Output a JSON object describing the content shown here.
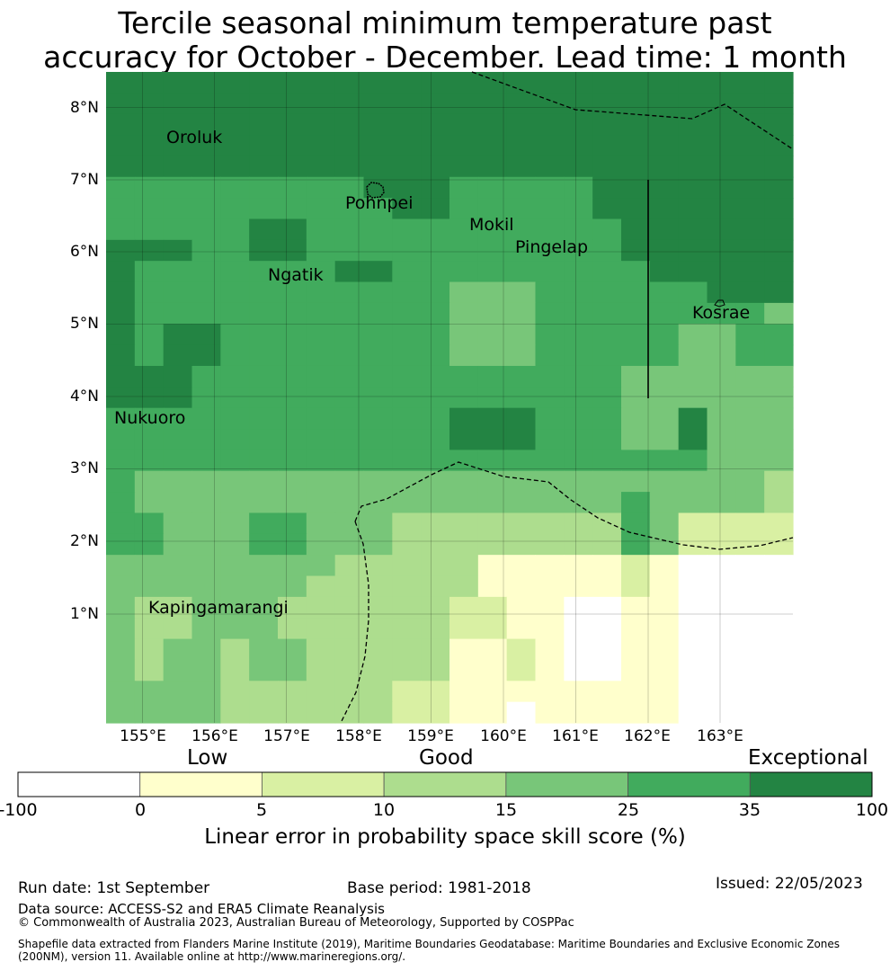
{
  "title": {
    "line1": "Tercile seasonal minimum temperature past",
    "line2": "accuracy for October - December. Lead time: 1 month"
  },
  "map": {
    "lat_labels": [
      "8°N",
      "7°N",
      "6°N",
      "5°N",
      "4°N",
      "3°N",
      "2°N",
      "1°N"
    ],
    "lon_labels": [
      "155°E",
      "156°E",
      "157°E",
      "158°E",
      "159°E",
      "160°E",
      "161°E",
      "162°E",
      "163°E"
    ],
    "places": [
      "Oroluk",
      "Pohnpei",
      "Mokil",
      "Pingelap",
      "Ngatik",
      "Kosrae",
      "Nukuoro",
      "Kapingamarangi"
    ],
    "grid_categories": [
      "666666666666666666666666",
      "666666666666666666666666",
      "666666666666666666666666",
      "666666666666666666666666",
      "666666666666666666666666",
      "555555555666555556666666",
      "555555555566555556666666",
      "555556655555555555666666",
      "666556655555555555666666",
      "655555556655555555566666",
      "655555555555444555555666",
      "655555555555444555555554",
      "656655555555444555554455",
      "656655555555444555554455",
      "666555555555555555444444",
      "666555555555555555444444",
      "555555555555666555446444",
      "555555555555666555446444",
      "555555555555555555555444",
      "544444444444444444444443",
      "544444444444444444544443",
      "554445544433333333542222",
      "554445544433333333542222",
      "444444443333311111210000",
      "444444433333311111210000",
      "433444333333221100110000",
      "433444333333221100110000",
      "434434433333112100110000",
      "434434433333112100110000",
      "444433333322111111110000",
      "444433333322110111110000"
    ],
    "colorbar": {
      "bounds": [
        "-100",
        "0",
        "5",
        "10",
        "15",
        "25",
        "35",
        "100"
      ],
      "colors": [
        "#ffffff",
        "#ffffcc",
        "#d9f0a3",
        "#addd8e",
        "#78c679",
        "#41ab5d",
        "#238443"
      ],
      "category_labels": [
        "Low",
        "Good",
        "Exceptional"
      ],
      "title": "Linear error in probability space skill score (%)"
    }
  },
  "footer": {
    "run_date": "Run date: 1st September",
    "base_period": "Base period: 1981-2018",
    "issued": "Issued: 22/05/2023",
    "data_source": "Data source: ACCESS-S2 and ERA5 Climate Reanalysis",
    "copyright": "© Commonwealth of Australia 2023, Australian Bureau of Meteorology, Supported by COSPPac",
    "shapefile_line1": "Shapefile data extracted from Flanders Marine Institute (2019), Maritime Boundaries Geodatabase: Maritime Boundaries and Exclusive Economic Zones",
    "shapefile_line2": "(200NM), version 11. Available online at http://www.marineregions.org/."
  }
}
